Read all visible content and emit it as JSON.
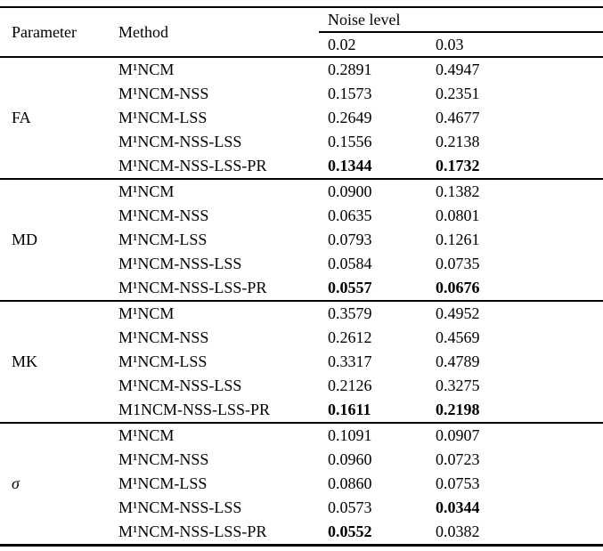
{
  "table": {
    "header": {
      "parameter": "Parameter",
      "method": "Method",
      "noise_level": "Noise level",
      "noise_columns": [
        "0.02",
        "0.03"
      ]
    },
    "groups": [
      {
        "parameter": "FA",
        "rows": [
          {
            "method": "M¹NCM",
            "values": [
              {
                "text": "0.2891",
                "bold": false
              },
              {
                "text": "0.4947",
                "bold": false
              }
            ]
          },
          {
            "method": "M¹NCM-NSS",
            "values": [
              {
                "text": "0.1573",
                "bold": false
              },
              {
                "text": "0.2351",
                "bold": false
              }
            ]
          },
          {
            "method": "M¹NCM-LSS",
            "values": [
              {
                "text": "0.2649",
                "bold": false
              },
              {
                "text": "0.4677",
                "bold": false
              }
            ]
          },
          {
            "method": "M¹NCM-NSS-LSS",
            "values": [
              {
                "text": "0.1556",
                "bold": false
              },
              {
                "text": "0.2138",
                "bold": false
              }
            ]
          },
          {
            "method": "M¹NCM-NSS-LSS-PR",
            "values": [
              {
                "text": "0.1344",
                "bold": true
              },
              {
                "text": "0.1732",
                "bold": true
              }
            ]
          }
        ]
      },
      {
        "parameter": "MD",
        "rows": [
          {
            "method": "M¹NCM",
            "values": [
              {
                "text": "0.0900",
                "bold": false
              },
              {
                "text": "0.1382",
                "bold": false
              }
            ]
          },
          {
            "method": "M¹NCM-NSS",
            "values": [
              {
                "text": "0.0635",
                "bold": false
              },
              {
                "text": "0.0801",
                "bold": false
              }
            ]
          },
          {
            "method": "M¹NCM-LSS",
            "values": [
              {
                "text": "0.0793",
                "bold": false
              },
              {
                "text": "0.1261",
                "bold": false
              }
            ]
          },
          {
            "method": "M¹NCM-NSS-LSS",
            "values": [
              {
                "text": "0.0584",
                "bold": false
              },
              {
                "text": "0.0735",
                "bold": false
              }
            ]
          },
          {
            "method": "M¹NCM-NSS-LSS-PR",
            "values": [
              {
                "text": "0.0557",
                "bold": true
              },
              {
                "text": "0.0676",
                "bold": true
              }
            ]
          }
        ]
      },
      {
        "parameter": "MK",
        "rows": [
          {
            "method": "M¹NCM",
            "values": [
              {
                "text": "0.3579",
                "bold": false
              },
              {
                "text": "0.4952",
                "bold": false
              }
            ]
          },
          {
            "method": "M¹NCM-NSS",
            "values": [
              {
                "text": "0.2612",
                "bold": false
              },
              {
                "text": "0.4569",
                "bold": false
              }
            ]
          },
          {
            "method": "M¹NCM-LSS",
            "values": [
              {
                "text": "0.3317",
                "bold": false
              },
              {
                "text": "0.4789",
                "bold": false
              }
            ]
          },
          {
            "method": "M¹NCM-NSS-LSS",
            "values": [
              {
                "text": "0.2126",
                "bold": false
              },
              {
                "text": "0.3275",
                "bold": false
              }
            ]
          },
          {
            "method": "M1NCM-NSS-LSS-PR",
            "values": [
              {
                "text": "0.1611",
                "bold": true
              },
              {
                "text": "0.2198",
                "bold": true
              }
            ]
          }
        ]
      },
      {
        "parameter": "σ",
        "rows": [
          {
            "method": "M¹NCM",
            "values": [
              {
                "text": "0.1091",
                "bold": false
              },
              {
                "text": "0.0907",
                "bold": false
              }
            ]
          },
          {
            "method": "M¹NCM-NSS",
            "values": [
              {
                "text": "0.0960",
                "bold": false
              },
              {
                "text": "0.0723",
                "bold": false
              }
            ]
          },
          {
            "method": "M¹NCM-LSS",
            "values": [
              {
                "text": "0.0860",
                "bold": false
              },
              {
                "text": "0.0753",
                "bold": false
              }
            ]
          },
          {
            "method": "M¹NCM-NSS-LSS",
            "values": [
              {
                "text": "0.0573",
                "bold": false
              },
              {
                "text": "0.0344",
                "bold": true
              }
            ]
          },
          {
            "method": "M¹NCM-NSS-LSS-PR",
            "values": [
              {
                "text": "0.0552",
                "bold": true
              },
              {
                "text": "0.0382",
                "bold": false
              }
            ]
          }
        ]
      }
    ]
  }
}
